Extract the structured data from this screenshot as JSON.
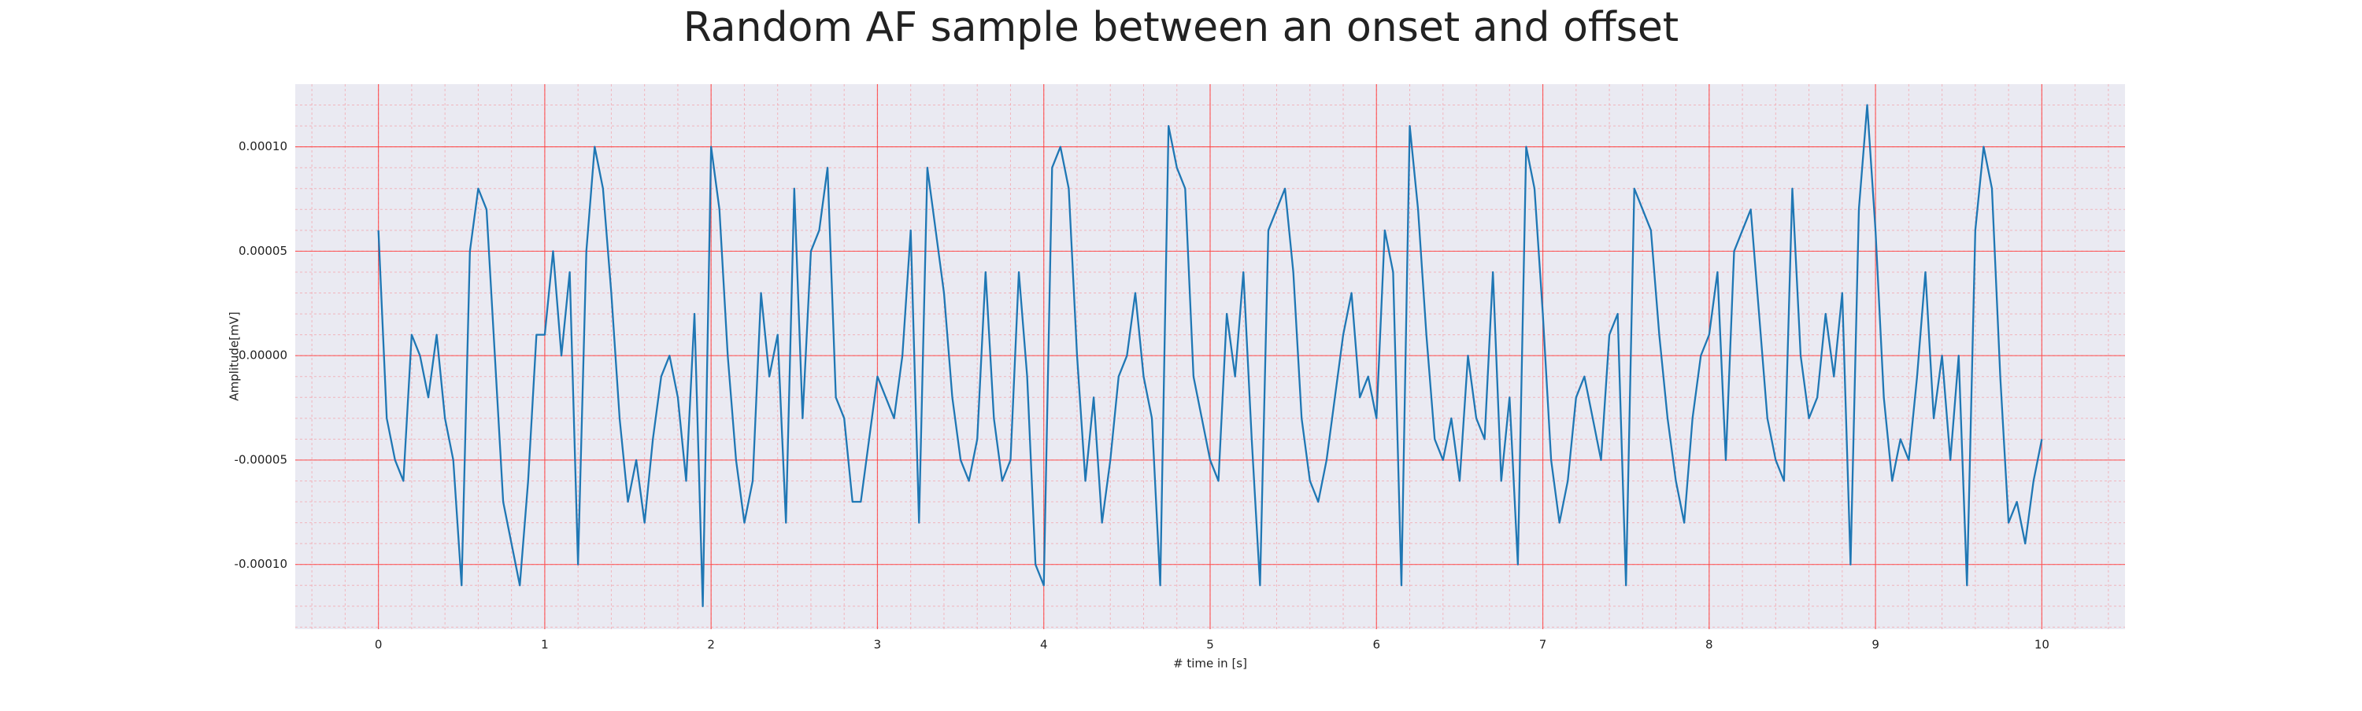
{
  "chart_data": {
    "type": "line",
    "title": "Random AF sample between an onset and offset",
    "xlabel": "# time in [s]",
    "ylabel": "Amplitude[mV]",
    "x": [
      0,
      0.05,
      0.1,
      0.15,
      0.2,
      0.25,
      0.3,
      0.35,
      0.4,
      0.45,
      0.5,
      0.55,
      0.6,
      0.65,
      0.7,
      0.75,
      0.8,
      0.85,
      0.9,
      0.95,
      1,
      1.05,
      1.1,
      1.15,
      1.2,
      1.25,
      1.3,
      1.35,
      1.4,
      1.45,
      1.5,
      1.55,
      1.6,
      1.65,
      1.7,
      1.75,
      1.8,
      1.85,
      1.9,
      1.95,
      2,
      2.05,
      2.1,
      2.15,
      2.2,
      2.25,
      2.3,
      2.35,
      2.4,
      2.45,
      2.5,
      2.55,
      2.6,
      2.65,
      2.7,
      2.75,
      2.8,
      2.85,
      2.9,
      2.95,
      3,
      3.05,
      3.1,
      3.15,
      3.2,
      3.25,
      3.3,
      3.35,
      3.4,
      3.45,
      3.5,
      3.55,
      3.6,
      3.65,
      3.7,
      3.75,
      3.8,
      3.85,
      3.9,
      3.95,
      4,
      4.05,
      4.1,
      4.15,
      4.2,
      4.25,
      4.3,
      4.35,
      4.4,
      4.45,
      4.5,
      4.55,
      4.6,
      4.65,
      4.7,
      4.75,
      4.8,
      4.85,
      4.9,
      4.95,
      5,
      5.05,
      5.1,
      5.15,
      5.2,
      5.25,
      5.3,
      5.35,
      5.4,
      5.45,
      5.5,
      5.55,
      5.6,
      5.65,
      5.7,
      5.75,
      5.8,
      5.85,
      5.9,
      5.95,
      6,
      6.05,
      6.1,
      6.15,
      6.2,
      6.25,
      6.3,
      6.35,
      6.4,
      6.45,
      6.5,
      6.55,
      6.6,
      6.65,
      6.7,
      6.75,
      6.8,
      6.85,
      6.9,
      6.95,
      7,
      7.05,
      7.1,
      7.15,
      7.2,
      7.25,
      7.3,
      7.35,
      7.4,
      7.45,
      7.5,
      7.55,
      7.6,
      7.65,
      7.7,
      7.75,
      7.8,
      7.85,
      7.9,
      7.95,
      8,
      8.05,
      8.1,
      8.15,
      8.2,
      8.25,
      8.3,
      8.35,
      8.4,
      8.45,
      8.5,
      8.55,
      8.6,
      8.65,
      8.7,
      8.75,
      8.8,
      8.85,
      8.9,
      8.95,
      9,
      9.05,
      9.1,
      9.15,
      9.2,
      9.25,
      9.3,
      9.35,
      9.4,
      9.45,
      9.5,
      9.55,
      9.6,
      9.65,
      9.7,
      9.75,
      9.8,
      9.85,
      9.9,
      9.95,
      10
    ],
    "series": [
      {
        "name": "Amplitude",
        "color": "#1f77b4",
        "values": [
          6e-05,
          -3e-05,
          -5e-05,
          -6e-05,
          1e-05,
          0,
          -2e-05,
          1e-05,
          -3e-05,
          -5e-05,
          -0.00011,
          5e-05,
          8e-05,
          7e-05,
          0,
          -7e-05,
          -9e-05,
          -0.00011,
          -6e-05,
          1e-05,
          1e-05,
          5e-05,
          0,
          4e-05,
          -0.0001,
          5e-05,
          0.0001,
          8e-05,
          3e-05,
          -3e-05,
          -7e-05,
          -5e-05,
          -8e-05,
          -4e-05,
          -1e-05,
          0,
          -2e-05,
          -6e-05,
          2e-05,
          -0.00012,
          0.0001,
          7e-05,
          0,
          -5e-05,
          -8e-05,
          -6e-05,
          3e-05,
          -1e-05,
          1e-05,
          -8e-05,
          8e-05,
          -3e-05,
          5e-05,
          6e-05,
          9e-05,
          -2e-05,
          -3e-05,
          -7e-05,
          -7e-05,
          -4e-05,
          -1e-05,
          -2e-05,
          -3e-05,
          0,
          6e-05,
          -8e-05,
          9e-05,
          6e-05,
          3e-05,
          -2e-05,
          -5e-05,
          -6e-05,
          -4e-05,
          4e-05,
          -3e-05,
          -6e-05,
          -5e-05,
          4e-05,
          -1e-05,
          -0.0001,
          -0.00011,
          9e-05,
          0.0001,
          8e-05,
          0,
          -6e-05,
          -2e-05,
          -8e-05,
          -5e-05,
          -1e-05,
          0,
          3e-05,
          -1e-05,
          -3e-05,
          -0.00011,
          0.00011,
          9e-05,
          8e-05,
          -1e-05,
          -3e-05,
          -5e-05,
          -6e-05,
          2e-05,
          -1e-05,
          4e-05,
          -4e-05,
          -0.00011,
          6e-05,
          7e-05,
          8e-05,
          4e-05,
          -3e-05,
          -6e-05,
          -7e-05,
          -5e-05,
          -2e-05,
          1e-05,
          3e-05,
          -2e-05,
          -1e-05,
          -3e-05,
          6e-05,
          4e-05,
          -0.00011,
          0.00011,
          7e-05,
          1e-05,
          -4e-05,
          -5e-05,
          -3e-05,
          -6e-05,
          0,
          -3e-05,
          -4e-05,
          4e-05,
          -6e-05,
          -2e-05,
          -0.0001,
          0.0001,
          8e-05,
          2e-05,
          -5e-05,
          -8e-05,
          -6e-05,
          -2e-05,
          -1e-05,
          -3e-05,
          -5e-05,
          1e-05,
          2e-05,
          -0.00011,
          8e-05,
          7e-05,
          6e-05,
          1e-05,
          -3e-05,
          -6e-05,
          -8e-05,
          -3e-05,
          0,
          1e-05,
          4e-05,
          -5e-05,
          5e-05,
          6e-05,
          7e-05,
          2e-05,
          -3e-05,
          -5e-05,
          -6e-05,
          8e-05,
          0,
          -3e-05,
          -2e-05,
          2e-05,
          -1e-05,
          3e-05,
          -0.0001,
          7e-05,
          0.00012,
          6e-05,
          -2e-05,
          -6e-05,
          -4e-05,
          -5e-05,
          -1e-05,
          4e-05,
          -3e-05,
          0,
          -5e-05,
          0,
          -0.00011,
          6e-05,
          0.0001,
          8e-05,
          -1e-05,
          -8e-05,
          -7e-05,
          -9e-05,
          -6e-05,
          -4e-05
        ]
      }
    ],
    "xlim": [
      -0.5,
      10.5
    ],
    "xticks": [
      0,
      1,
      2,
      3,
      4,
      5,
      6,
      7,
      8,
      9,
      10
    ],
    "ylim": [
      -0.000131,
      0.00013
    ],
    "yticks": [
      {
        "value": -0.0001,
        "label": "-0.00010"
      },
      {
        "value": -5e-05,
        "label": "-0.00005"
      },
      {
        "value": 0,
        "label": "0.00000"
      },
      {
        "value": 5e-05,
        "label": "0.00005"
      },
      {
        "value": 0.0001,
        "label": "0.00010"
      }
    ],
    "grid": true,
    "minor_grid": true
  }
}
